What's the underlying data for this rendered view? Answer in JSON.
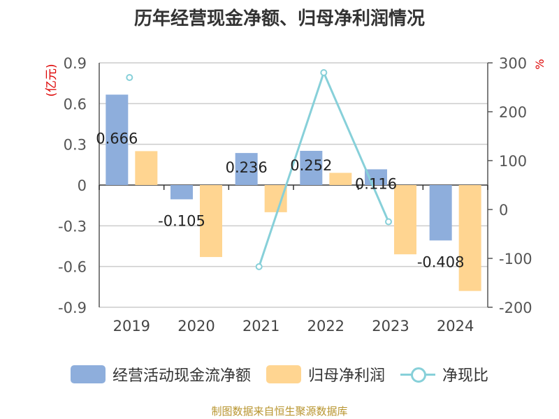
{
  "title": "历年经营现金净额、归母净利润情况",
  "source": "制图数据来自恒生聚源数据库",
  "chart_data": {
    "type": "bar",
    "categories": [
      "2019",
      "2020",
      "2021",
      "2022",
      "2023",
      "2024"
    ],
    "left_axis": {
      "unit": "(亿元)",
      "ylim": [
        -0.9,
        0.9
      ],
      "ticks": [
        "0.9",
        "0.6",
        "0.3",
        "0",
        "-0.3",
        "-0.6",
        "-0.9"
      ]
    },
    "right_axis": {
      "unit": "%",
      "ylim": [
        -200,
        300
      ],
      "ticks": [
        "300",
        "200",
        "100",
        "0",
        "-100",
        "-200"
      ]
    },
    "series": [
      {
        "name": "经营活动现金流净额",
        "type": "bar",
        "axis": "left",
        "color": "#8eaedc",
        "values": [
          0.666,
          -0.105,
          0.236,
          0.252,
          0.116,
          -0.408
        ],
        "labels": [
          "0.666",
          "-0.105",
          "0.236",
          "0.252",
          "0.116",
          "-0.408"
        ]
      },
      {
        "name": "归母净利润",
        "type": "bar",
        "axis": "left",
        "color": "#ffd591",
        "values": [
          0.25,
          -0.53,
          -0.2,
          0.09,
          -0.51,
          -0.78
        ]
      },
      {
        "name": "净现比",
        "type": "line",
        "axis": "right",
        "color": "#87d0d9",
        "values": [
          270,
          null,
          -117,
          280,
          -25,
          null
        ]
      }
    ],
    "grid": true,
    "legend_position": "bottom"
  }
}
